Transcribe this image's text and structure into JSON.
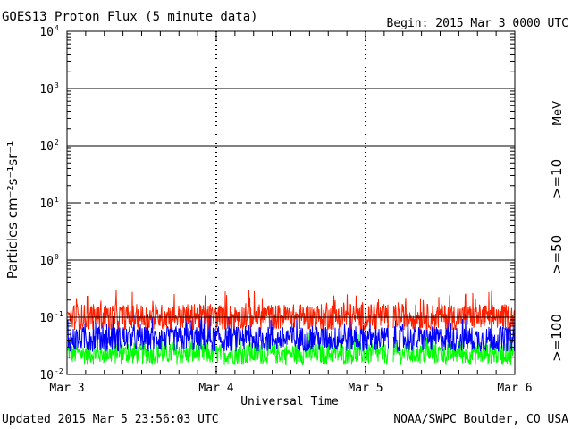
{
  "chart_data": {
    "type": "line",
    "title": "GOES13 Proton Flux (5 minute data)",
    "begin_label": "Begin: 2015 Mar 3 0000 UTC",
    "updated_label": "Updated 2015 Mar  5 23:56:03 UTC",
    "credit_label": "NOAA/SWPC Boulder, CO USA",
    "xlabel": "Universal Time",
    "ylabel": "Particles cm⁻²s⁻¹sr⁻¹",
    "y_scale": "log",
    "ylim": [
      0.01,
      10000
    ],
    "y_ticks": [
      {
        "value": 0.01,
        "base": "10",
        "exp": "-2"
      },
      {
        "value": 0.1,
        "base": "10",
        "exp": "-1"
      },
      {
        "value": 1,
        "base": "10",
        "exp": "0"
      },
      {
        "value": 10,
        "base": "10",
        "exp": "1"
      },
      {
        "value": 100,
        "base": "10",
        "exp": "2"
      },
      {
        "value": 1000,
        "base": "10",
        "exp": "3"
      },
      {
        "value": 10000,
        "base": "10",
        "exp": "4"
      }
    ],
    "x_categories": [
      "Mar 3",
      "Mar 4",
      "Mar 5",
      "Mar 6"
    ],
    "x_range_days": [
      0,
      3
    ],
    "threshold_lines": [
      {
        "value": 1000,
        "style": "solid"
      },
      {
        "value": 100,
        "style": "solid"
      },
      {
        "value": 10,
        "style": "dashed"
      },
      {
        "value": 1,
        "style": "solid"
      },
      {
        "value": 0.1,
        "style": "solid"
      }
    ],
    "data_gap_days": [
      2.15,
      2.18
    ],
    "legend_unit": "MeV",
    "series": [
      {
        "name": ">=10",
        "color": "#ff2000",
        "typical": 0.1,
        "min": 0.06,
        "max": 0.3
      },
      {
        "name": ">=50",
        "color": "#0000ff",
        "typical": 0.045,
        "min": 0.025,
        "max": 0.12
      },
      {
        "name": ">=100",
        "color": "#00ff00",
        "typical": 0.025,
        "min": 0.015,
        "max": 0.055
      }
    ]
  }
}
